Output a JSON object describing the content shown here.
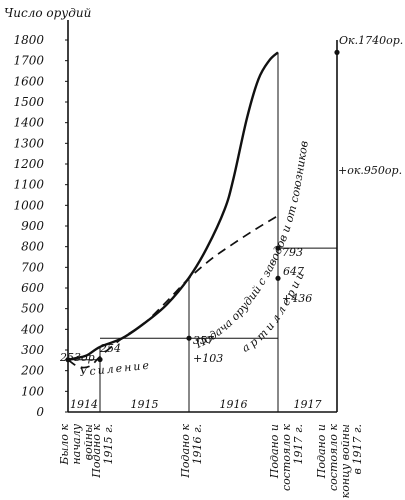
{
  "chart_data": {
    "type": "line",
    "ylabel": "Число орудий",
    "yticks": [
      0,
      100,
      200,
      300,
      400,
      500,
      600,
      700,
      800,
      900,
      1000,
      1100,
      1200,
      1300,
      1400,
      1500,
      1600,
      1700,
      1800
    ],
    "ylim": [
      0,
      1800
    ],
    "grid": false,
    "period_labels": [
      "1914",
      "1915",
      "1916",
      "1917"
    ],
    "x_labels": [
      "Было к началу войны",
      "Подано к 1915 г.",
      "Подано к 1916 г.",
      "Подано и состояло к 1917 г.",
      "Подано и состояло к концу войны в 1917 г."
    ],
    "series": [
      {
        "name": "Подача орудий с заводов и от союзников",
        "x": [
          0,
          0.3,
          0.6,
          1.0,
          1.25,
          1.5,
          1.75,
          2.0,
          2.2,
          2.4,
          2.5,
          2.65,
          2.78,
          2.9,
          3.0
        ],
        "values": [
          253,
          262,
          275,
          315,
          357,
          430,
          520,
          650,
          793,
          980,
          1130,
          1420,
          1610,
          1700,
          1740
        ]
      },
      {
        "name": "Усиление артиллерии",
        "x": [
          0,
          0.25,
          0.5,
          0.75,
          1.0,
          1.25,
          1.5,
          1.75,
          2.0,
          2.25,
          2.5,
          2.75,
          3.0
        ],
        "values": [
          253,
          225,
          215,
          228,
          268,
          357,
          430,
          535,
          647,
          740,
          815,
          885,
          950
        ]
      }
    ],
    "point_labels": {
      "start": "253ор.",
      "s1915": "254",
      "s1916": "357",
      "s1917": "793",
      "r1917": "647",
      "end": "Ок.1740ор."
    },
    "annotations": {
      "inc_1916": "+103",
      "inc_1917": "+436",
      "inc_end": "+ок.950ор.",
      "curve_label_1": "Подача орудий с заводов и от союзников",
      "curve_label_2": "Усиление",
      "curve_label_3": "артиллерии"
    }
  }
}
